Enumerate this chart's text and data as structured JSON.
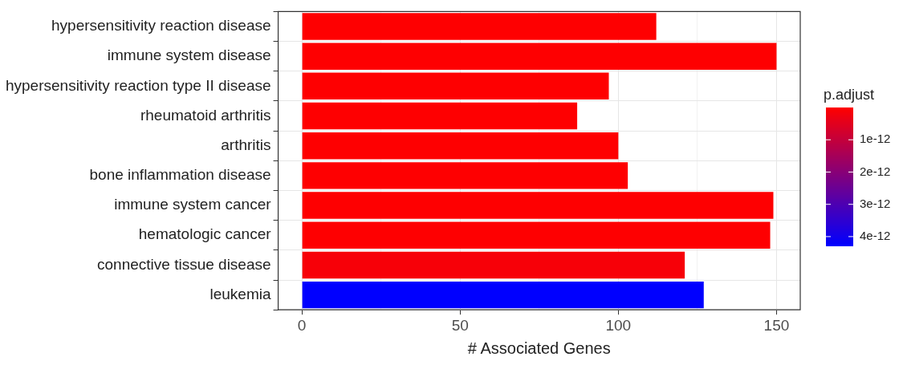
{
  "chart_data": {
    "type": "bar",
    "orientation": "horizontal",
    "xlabel": "# Associated Genes",
    "clabel": "p.adjust",
    "categories": [
      "hypersensitivity reaction disease",
      "immune system disease",
      "hypersensitivity reaction type II disease",
      "rheumatoid arthritis",
      "arthritis",
      "bone inflammation disease",
      "immune system cancer",
      "hematologic cancer",
      "connective tissue disease",
      "leukemia"
    ],
    "values": [
      112,
      150,
      97,
      87,
      100,
      103,
      149,
      148,
      121,
      127
    ],
    "cvalues": [
      1e-14,
      1e-14,
      1e-14,
      1e-14,
      1e-14,
      1e-14,
      1e-14,
      1e-14,
      1.3e-13,
      4.3e-12
    ],
    "clim": [
      0,
      4.3e-12
    ],
    "cticks": [
      {
        "value": 1e-12,
        "label": "1e-12"
      },
      {
        "value": 2e-12,
        "label": "2e-12"
      },
      {
        "value": 3e-12,
        "label": "3e-12"
      },
      {
        "value": 4e-12,
        "label": "4e-12"
      }
    ],
    "xlim": [
      -7.5,
      157.5
    ],
    "xticks": [
      0,
      {
        "value": 25,
        "label": null
      },
      50,
      {
        "value": 75,
        "label": null
      },
      100,
      {
        "value": 125,
        "label": null
      },
      150
    ],
    "grid": true,
    "legend": false
  }
}
